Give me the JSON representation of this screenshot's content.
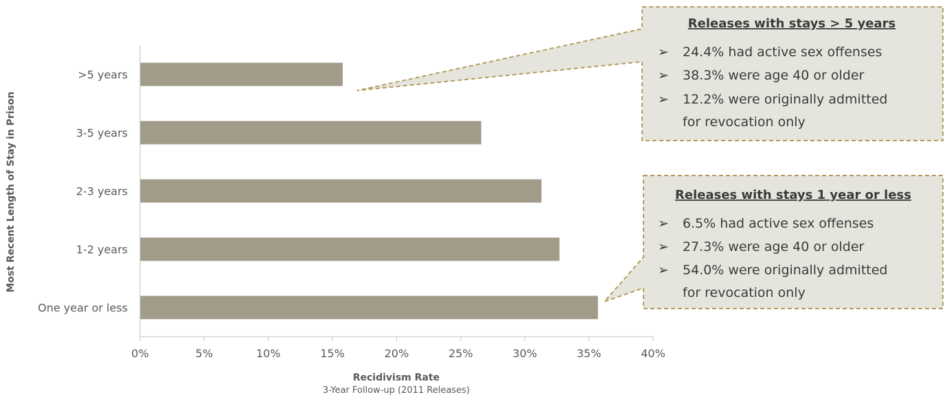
{
  "chart_data": {
    "type": "bar",
    "orientation": "horizontal",
    "categories": [
      ">5 years",
      "3-5 years",
      "2-3 years",
      "1-2 years",
      "One year or less"
    ],
    "values": [
      15.8,
      26.6,
      31.3,
      32.7,
      35.7
    ],
    "xlabel": "Recidivism Rate",
    "xlabel_sub": "3-Year Follow-up (2011 Releases)",
    "ylabel": "Most Recent Length of Stay in Prison",
    "xlim": [
      0,
      40
    ],
    "xticks": [
      0,
      5,
      10,
      15,
      20,
      25,
      30,
      35,
      40
    ],
    "xtick_labels": [
      "0%",
      "5%",
      "10%",
      "15%",
      "20%",
      "25%",
      "30%",
      "35%",
      "40%"
    ],
    "grid": false,
    "bar_color": "#a19c89"
  },
  "callouts": [
    {
      "title": "Releases with stays > 5 years",
      "target_category": ">5 years",
      "bullet_symbol": "➢",
      "bullets": [
        "24.4% had active sex offenses",
        "38.3% were age 40 or older",
        "12.2% were originally admitted",
        "for revocation only"
      ]
    },
    {
      "title": "Releases with stays 1 year or less",
      "target_category": "One year or less",
      "bullet_symbol": "➢",
      "bullets": [
        "6.5% had active sex offenses",
        "27.3% were age 40 or older",
        "54.0% were originally admitted",
        "for revocation only"
      ]
    }
  ],
  "colors": {
    "callout_fill": "#e6e5dd",
    "callout_border": "#b09d5e",
    "axis": "#bfbfbf"
  }
}
